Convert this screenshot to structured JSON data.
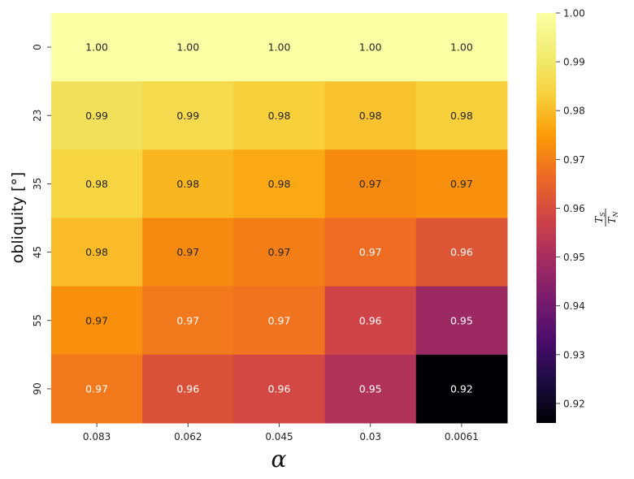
{
  "chart_data": {
    "type": "heatmap",
    "xlabel": "α",
    "ylabel": "obliquity [°]",
    "x_categories": [
      "0.083",
      "0.062",
      "0.045",
      "0.03",
      "0.0061"
    ],
    "y_categories": [
      "0",
      "23",
      "35",
      "45",
      "55",
      "90"
    ],
    "values": [
      [
        1.0,
        1.0,
        1.0,
        1.0,
        1.0
      ],
      [
        0.988,
        0.986,
        0.983,
        0.981,
        0.983
      ],
      [
        0.984,
        0.979,
        0.977,
        0.972,
        0.973
      ],
      [
        0.98,
        0.972,
        0.97,
        0.967,
        0.962
      ],
      [
        0.973,
        0.969,
        0.968,
        0.958,
        0.948
      ],
      [
        0.969,
        0.961,
        0.959,
        0.952,
        0.916
      ]
    ],
    "annotations": [
      [
        "1.00",
        "1.00",
        "1.00",
        "1.00",
        "1.00"
      ],
      [
        "0.99",
        "0.99",
        "0.98",
        "0.98",
        "0.98"
      ],
      [
        "0.98",
        "0.98",
        "0.98",
        "0.97",
        "0.97"
      ],
      [
        "0.98",
        "0.97",
        "0.97",
        "0.97",
        "0.96"
      ],
      [
        "0.97",
        "0.97",
        "0.97",
        "0.96",
        "0.95"
      ],
      [
        "0.97",
        "0.96",
        "0.96",
        "0.95",
        "0.92"
      ]
    ],
    "colormap": "inferno",
    "colorbar": {
      "range": [
        0.916,
        1.0
      ],
      "ticks": [
        "1.00",
        "0.99",
        "0.98",
        "0.97",
        "0.96",
        "0.95",
        "0.94",
        "0.93",
        "0.92"
      ],
      "label_numerator": "T",
      "label_numerator_sub": "S",
      "label_denominator": "T",
      "label_denominator_sub": "N"
    }
  }
}
